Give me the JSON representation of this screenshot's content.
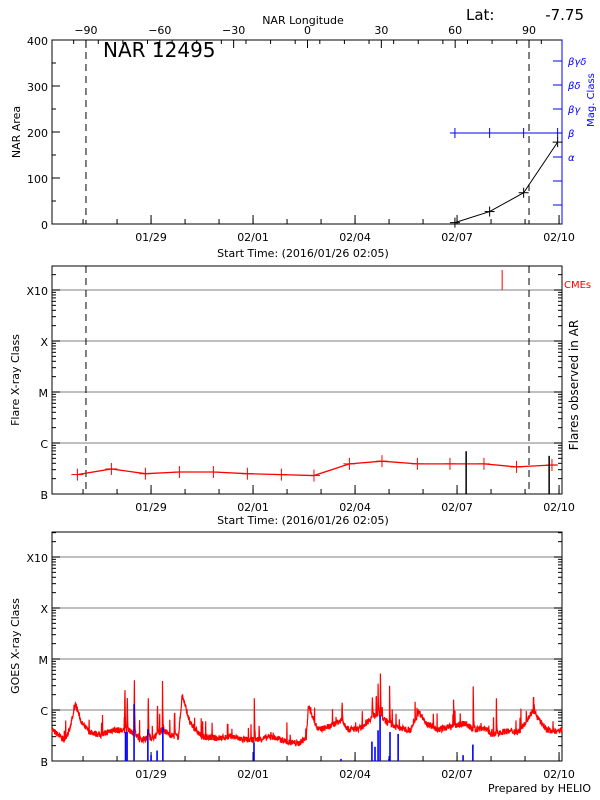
{
  "header": {
    "longitude_label": "NAR Longitude",
    "lat_label": "Lat:",
    "lat_value": "-7.75",
    "region_title": "NAR 12495",
    "footer": "Prepared by HELIO"
  },
  "colors": {
    "axis": "#000000",
    "mag_class": "#0000ff",
    "flux": "#ff0000",
    "flare_bars": "#0000ff",
    "grid": "#999999",
    "cme": "#ff0000"
  },
  "chart_data": [
    {
      "type": "line",
      "panel": "nar-area",
      "ylabel": "NAR Area",
      "y2label": "Mag. Class",
      "xlabel": "Start Time: (2016/01/26 02:05)",
      "xlim": [
        "2016-01-26T02:05",
        "2016-02-10T02:05"
      ],
      "xticks": [
        {
          "t": "2016-01-29T00:00",
          "label": "01/29"
        },
        {
          "t": "2016-02-01T00:00",
          "label": "02/01"
        },
        {
          "t": "2016-02-04T00:00",
          "label": "02/04"
        },
        {
          "t": "2016-02-07T00:00",
          "label": "02/07"
        },
        {
          "t": "2016-02-10T00:00",
          "label": "02/10"
        }
      ],
      "ylim": [
        0,
        400
      ],
      "yticks": [
        "0",
        "100",
        "200",
        "300",
        "400"
      ],
      "longitude_axis": {
        "range": [
          -103.8,
          103.4
        ],
        "ticks": [
          "-90",
          "-60",
          "-30",
          "0",
          "30",
          "60",
          "90"
        ]
      },
      "limb_lines_longitude": [
        -90,
        90
      ],
      "mag_classes": [
        "α",
        "β",
        "βγ",
        "βδ",
        "βγδ"
      ],
      "area_series": [
        {
          "t": "2016-02-06T22:30",
          "area": 3
        },
        {
          "t": "2016-02-07T23:00",
          "area": 27
        },
        {
          "t": "2016-02-08T23:00",
          "area": 68
        },
        {
          "t": "2016-02-09T23:00",
          "area": 178
        }
      ],
      "mag_series": [
        {
          "t": "2016-02-06T22:30",
          "class": "β"
        },
        {
          "t": "2016-02-07T23:00",
          "class": "β"
        },
        {
          "t": "2016-02-08T23:00",
          "class": "β"
        },
        {
          "t": "2016-02-09T23:00",
          "class": "β"
        }
      ]
    },
    {
      "type": "line",
      "panel": "flares",
      "ylabel": "Flare X-ray Class",
      "y2label": "Flares observed in AR",
      "xlabel": "Start Time: (2016/01/26 02:05)",
      "yscale": "log",
      "yticks": [
        "B",
        "C",
        "M",
        "X",
        "X10"
      ],
      "grid": true,
      "cme_label": "CMEs",
      "background_series": [
        {
          "t": "2016-01-26T20:00",
          "class": "B2.4"
        },
        {
          "t": "2016-01-27T20:00",
          "class": "B3.1"
        },
        {
          "t": "2016-01-28T20:00",
          "class": "B2.5"
        },
        {
          "t": "2016-01-29T20:00",
          "class": "B2.7"
        },
        {
          "t": "2016-01-30T20:00",
          "class": "B2.7"
        },
        {
          "t": "2016-01-31T20:00",
          "class": "B2.5"
        },
        {
          "t": "2016-02-01T20:00",
          "class": "B2.4"
        },
        {
          "t": "2016-02-02T19:00",
          "class": "B2.3"
        },
        {
          "t": "2016-02-03T20:00",
          "class": "B3.9"
        },
        {
          "t": "2016-02-04T19:00",
          "class": "B4.4"
        },
        {
          "t": "2016-02-05T20:00",
          "class": "B3.9"
        },
        {
          "t": "2016-02-06T19:00",
          "class": "B3.9"
        },
        {
          "t": "2016-02-07T19:00",
          "class": "B3.9"
        },
        {
          "t": "2016-02-08T18:00",
          "class": "B3.4"
        },
        {
          "t": "2016-02-09T19:00",
          "class": "B3.7"
        }
      ],
      "flares": [
        {
          "t": "2016-02-07T06:25",
          "class": "B6.9"
        },
        {
          "t": "2016-02-09T17:00",
          "class": "B5.6"
        }
      ],
      "cmes": [
        {
          "t": "2016-02-08T07:50"
        }
      ]
    },
    {
      "type": "line",
      "panel": "goes",
      "ylabel": "GOES X-ray Class",
      "yscale": "log",
      "yticks": [
        "B",
        "C",
        "M",
        "X",
        "X10"
      ],
      "grid": true,
      "flux_background": [
        {
          "t": "2016-01-26T02:05",
          "class": "B4.1"
        },
        {
          "t": "2016-01-26T10:30",
          "class": "B2.6"
        },
        {
          "t": "2016-01-26T14:35",
          "class": "B4.1"
        },
        {
          "t": "2016-01-26T18:50",
          "class": "C1.3"
        },
        {
          "t": "2016-01-26T23:00",
          "class": "B5.5"
        },
        {
          "t": "2016-01-27T04:15",
          "class": "B3.8"
        },
        {
          "t": "2016-01-27T12:40",
          "class": "B3.2"
        },
        {
          "t": "2016-01-27T20:50",
          "class": "B4.1"
        },
        {
          "t": "2016-01-28T10:30",
          "class": "B3.8"
        },
        {
          "t": "2016-01-28T16:00",
          "class": "B2.6"
        },
        {
          "t": "2016-01-29T02:50",
          "class": "B3.0"
        },
        {
          "t": "2016-01-29T08:20",
          "class": "B4.1"
        },
        {
          "t": "2016-01-29T13:50",
          "class": "B3.2"
        },
        {
          "t": "2016-01-29T19:20",
          "class": "B3.0"
        },
        {
          "t": "2016-01-29T22:00",
          "class": "C2.0"
        },
        {
          "t": "2016-01-30T03:30",
          "class": "B5.5"
        },
        {
          "t": "2016-01-30T11:40",
          "class": "B3.0"
        },
        {
          "t": "2016-01-30T22:40",
          "class": "B2.8"
        },
        {
          "t": "2016-01-31T09:30",
          "class": "B3.0"
        },
        {
          "t": "2016-01-31T17:50",
          "class": "B2.6"
        },
        {
          "t": "2016-02-01T02:05",
          "class": "B2.6"
        },
        {
          "t": "2016-02-01T12:55",
          "class": "B3.0"
        },
        {
          "t": "2016-02-01T23:55",
          "class": "B2.4"
        },
        {
          "t": "2016-02-02T08:05",
          "class": "B2.2"
        },
        {
          "t": "2016-02-02T13:35",
          "class": "B2.8"
        },
        {
          "t": "2016-02-02T15:00",
          "class": "C1.2"
        },
        {
          "t": "2016-02-02T21:45",
          "class": "B4.1"
        },
        {
          "t": "2016-02-03T05:55",
          "class": "B4.7"
        },
        {
          "t": "2016-02-03T14:20",
          "class": "B6.4"
        },
        {
          "t": "2016-02-03T19:35",
          "class": "B4.1"
        },
        {
          "t": "2016-02-04T04:00",
          "class": "B4.4"
        },
        {
          "t": "2016-02-04T12:10",
          "class": "B7.4"
        },
        {
          "t": "2016-02-04T16:15",
          "class": "B8.6"
        },
        {
          "t": "2016-02-04T23:00",
          "class": "B5.5"
        },
        {
          "t": "2016-02-05T07:20",
          "class": "B4.4"
        },
        {
          "t": "2016-02-05T15:30",
          "class": "B4.1"
        },
        {
          "t": "2016-02-05T21:00",
          "class": "B9.3"
        },
        {
          "t": "2016-02-06T02:20",
          "class": "B5.5"
        },
        {
          "t": "2016-02-06T10:40",
          "class": "B4.1"
        },
        {
          "t": "2016-02-06T18:50",
          "class": "B4.7"
        },
        {
          "t": "2016-02-07T05:55",
          "class": "B5.5"
        },
        {
          "t": "2016-02-07T11:15",
          "class": "B4.1"
        },
        {
          "t": "2016-02-07T19:35",
          "class": "B4.4"
        },
        {
          "t": "2016-02-08T00:55",
          "class": "B3.2"
        },
        {
          "t": "2016-02-08T09:15",
          "class": "B3.8"
        },
        {
          "t": "2016-02-08T20:05",
          "class": "B3.8"
        },
        {
          "t": "2016-02-09T05:45",
          "class": "C1.0"
        },
        {
          "t": "2016-02-09T09:50",
          "class": "B6.4"
        },
        {
          "t": "2016-02-09T15:20",
          "class": "B4.1"
        },
        {
          "t": "2016-02-09T23:30",
          "class": "B3.8"
        },
        {
          "t": "2016-02-10T02:05",
          "class": "B4.1"
        }
      ],
      "flux_peaks": [
        {
          "t": "2016-01-28T05:30",
          "class": "C5.2"
        },
        {
          "t": "2016-01-28T07:10",
          "class": "C2.9"
        },
        {
          "t": "2016-01-28T12:10",
          "class": "M1.0"
        },
        {
          "t": "2016-01-28T22:00",
          "class": "C3.3"
        },
        {
          "t": "2016-01-29T04:30",
          "class": "C2.1"
        },
        {
          "t": "2016-01-29T08:05",
          "class": "C3.7"
        },
        {
          "t": "2016-01-29T16:30",
          "class": "C1.3"
        },
        {
          "t": "2016-02-01T00:55",
          "class": "C1.7"
        },
        {
          "t": "2016-02-03T14:50",
          "class": "C1.9"
        },
        {
          "t": "2016-02-04T12:10",
          "class": "C2.5"
        },
        {
          "t": "2016-02-04T16:15",
          "class": "C3.3"
        },
        {
          "t": "2016-02-04T17:55",
          "class": "C5.2"
        },
        {
          "t": "2016-02-05T00:25",
          "class": "C3.0"
        },
        {
          "t": "2016-02-06T21:35",
          "class": "C1.6"
        },
        {
          "t": "2016-02-07T11:25",
          "class": "C2.9"
        },
        {
          "t": "2016-02-08T03:45",
          "class": "C1.7"
        },
        {
          "t": "2016-02-09T06:25",
          "class": "C1.3"
        }
      ],
      "region_flares": [
        {
          "t": "2016-01-28T06:00",
          "class": "B3.7"
        },
        {
          "t": "2016-01-28T07:05",
          "class": "B3.7"
        },
        {
          "t": "2016-01-28T12:00",
          "class": "C1.3"
        },
        {
          "t": "2016-01-28T21:45",
          "class": "B4.2"
        },
        {
          "t": "2016-01-29T00:00",
          "class": "B1.3"
        },
        {
          "t": "2016-01-29T04:15",
          "class": "B1.6"
        },
        {
          "t": "2016-01-29T08:20",
          "class": "B4.6"
        },
        {
          "t": "2016-02-01T00:40",
          "class": "B2.3"
        },
        {
          "t": "2016-02-03T14:05",
          "class": "B1.1"
        },
        {
          "t": "2016-02-04T11:55",
          "class": "B2.4"
        },
        {
          "t": "2016-02-04T14:05",
          "class": "B1.9"
        },
        {
          "t": "2016-02-04T16:15",
          "class": "B4.0"
        },
        {
          "t": "2016-02-04T17:40",
          "class": "B7.9"
        },
        {
          "t": "2016-02-04T23:55",
          "class": "B1.1"
        },
        {
          "t": "2016-02-05T00:40",
          "class": "B3.7"
        },
        {
          "t": "2016-02-05T06:25",
          "class": "B3.4"
        },
        {
          "t": "2016-02-07T04:15",
          "class": "B1.3"
        },
        {
          "t": "2016-02-07T11:10",
          "class": "B2.1"
        }
      ]
    }
  ]
}
